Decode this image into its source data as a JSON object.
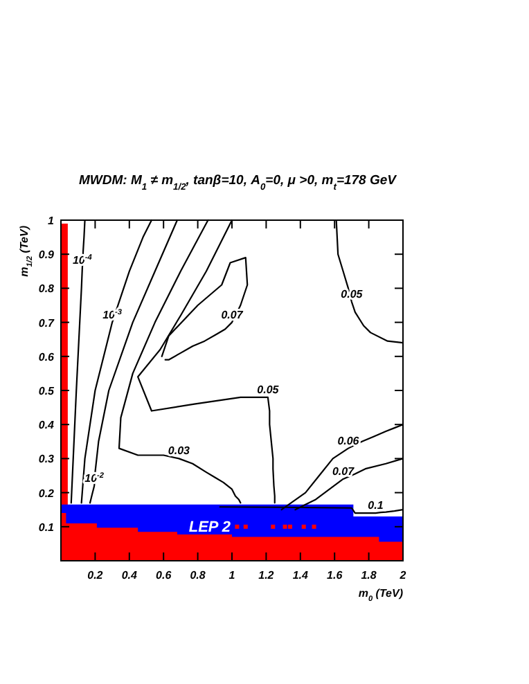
{
  "chart_data": {
    "type": "line",
    "title": "MWDM: M$_{1}$ ≠ m$_{1/2}$, tanβ=10, A$_{0}$=0, μ >0, m$_{t}$=178 GeV",
    "xlabel": "m$_{0}$ (TeV)",
    "ylabel": "m$_{1/2}$ (TeV)",
    "xlim": [
      0,
      2
    ],
    "xticks": [
      0.2,
      0.4,
      0.6,
      0.8,
      1,
      1.2,
      1.4,
      1.6,
      1.8,
      2
    ],
    "ylim": [
      0,
      1
    ],
    "yticks": [
      0.1,
      0.2,
      0.3,
      0.4,
      0.5,
      0.6,
      0.7,
      0.8,
      0.9,
      1
    ],
    "legend": false,
    "series": [
      {
        "type": "area",
        "color": "#ff0000",
        "x": [
          0,
          0.04
        ],
        "values": [
          0.99,
          0.99
        ]
      },
      {
        "type": "area",
        "name": "LEP 2",
        "color": "#0000ff",
        "x": [
          0,
          0.4,
          0.87,
          1.71,
          1.71,
          2
        ],
        "values": [
          0.165,
          0.165,
          0.165,
          0.165,
          0.13,
          0.13
        ]
      },
      {
        "type": "area",
        "color": "#ff0000",
        "x": [
          0,
          0.03,
          0.03,
          0.21,
          0.21,
          0.45,
          0.45,
          0.68,
          0.68,
          1.0,
          1.0,
          1.86,
          1.86,
          2
        ],
        "values": [
          0.14,
          0.14,
          0.11,
          0.11,
          0.097,
          0.097,
          0.085,
          0.085,
          0.077,
          0.077,
          0.07,
          0.07,
          0.056,
          0.056
        ]
      },
      {
        "name": "10$^{-4}$",
        "color": "#000000",
        "x": [
          0.06,
          0.09,
          0.12,
          0.125,
          0.13,
          0.135,
          0.14
        ],
        "values": [
          0.17,
          0.5,
          0.8,
          0.86,
          0.91,
          0.95,
          1.0
        ]
      },
      {
        "name": "10$^{-3}$",
        "color": "#000000",
        "x": [
          0.12,
          0.14,
          0.2,
          0.3,
          0.4,
          0.48,
          0.53
        ],
        "values": [
          0.17,
          0.3,
          0.5,
          0.7,
          0.85,
          0.95,
          1.0
        ]
      },
      {
        "name": "10$^{-2}$",
        "color": "#000000",
        "x": [
          0.17,
          0.175,
          0.18,
          0.185,
          0.19,
          0.195,
          0.2,
          0.22,
          0.28,
          0.42,
          0.55,
          0.68
        ],
        "values": [
          0.17,
          0.18,
          0.19,
          0.2,
          0.21,
          0.22,
          0.26,
          0.35,
          0.5,
          0.7,
          0.85,
          1.0
        ]
      },
      {
        "name": "0.03",
        "color": "#000000",
        "x": [
          0.86,
          0.7,
          0.55,
          0.42,
          0.35,
          0.34,
          0.45,
          0.6,
          0.69,
          0.77,
          0.85,
          0.9,
          0.95,
          1.0,
          1.02,
          1.04,
          1.05
        ],
        "values": [
          1.0,
          0.85,
          0.7,
          0.55,
          0.42,
          0.33,
          0.31,
          0.31,
          0.3,
          0.285,
          0.26,
          0.245,
          0.23,
          0.21,
          0.19,
          0.18,
          0.17
        ]
      },
      {
        "name": "0.05",
        "color": "#000000",
        "x": [
          1.0,
          0.85,
          0.7,
          0.58,
          0.45,
          0.53,
          0.78,
          1.05,
          1.21,
          1.22,
          1.22,
          1.23,
          1.24,
          1.24,
          1.245,
          1.25,
          1.25
        ],
        "values": [
          1.0,
          0.85,
          0.72,
          0.62,
          0.54,
          0.44,
          0.46,
          0.48,
          0.48,
          0.44,
          0.4,
          0.35,
          0.3,
          0.27,
          0.22,
          0.19,
          0.17
        ]
      },
      {
        "name": "0.07",
        "color": "#000000",
        "x": [
          0.61,
          0.63,
          0.7,
          0.77,
          0.84,
          0.91,
          0.96,
          1.0,
          1.05,
          1.09,
          1.08,
          0.99,
          0.94,
          0.8,
          0.63,
          0.59
        ],
        "values": [
          0.59,
          0.59,
          0.61,
          0.63,
          0.645,
          0.665,
          0.68,
          0.7,
          0.75,
          0.81,
          0.89,
          0.875,
          0.81,
          0.75,
          0.66,
          0.6
        ]
      },
      {
        "name": "0.05",
        "color": "#000000",
        "x": [
          1.61,
          1.615,
          1.62,
          1.65,
          1.68,
          1.7,
          1.72,
          1.77,
          1.81,
          1.91,
          2.0
        ],
        "values": [
          1.0,
          0.95,
          0.9,
          0.85,
          0.8,
          0.76,
          0.73,
          0.69,
          0.67,
          0.645,
          0.64
        ]
      },
      {
        "name": "0.06",
        "color": "#000000",
        "x": [
          1.29,
          1.36,
          1.43,
          1.51,
          1.59,
          1.68,
          1.76,
          1.83,
          1.9,
          1.95,
          2.0
        ],
        "values": [
          0.15,
          0.175,
          0.2,
          0.25,
          0.3,
          0.33,
          0.35,
          0.365,
          0.38,
          0.39,
          0.4
        ]
      },
      {
        "name": "0.07",
        "color": "#000000",
        "x": [
          1.37,
          1.43,
          1.49,
          1.57,
          1.65,
          1.72,
          1.78,
          1.9,
          2.0
        ],
        "values": [
          0.15,
          0.165,
          0.18,
          0.21,
          0.24,
          0.255,
          0.27,
          0.285,
          0.3
        ]
      },
      {
        "name": "0.1",
        "color": "#000000",
        "x": [
          0.93,
          1.3,
          1.7,
          1.72,
          1.84,
          1.87,
          1.9,
          1.95,
          2.0
        ],
        "values": [
          0.158,
          0.157,
          0.155,
          0.14,
          0.14,
          0.142,
          0.143,
          0.146,
          0.15
        ]
      },
      {
        "type": "scatter",
        "color": "#ff0000",
        "marker": "square",
        "x": [
          1.03,
          1.08,
          1.24,
          1.31,
          1.34,
          1.42,
          1.48
        ],
        "values": [
          0.1,
          0.1,
          0.1,
          0.1,
          0.1,
          0.1,
          0.1
        ]
      }
    ]
  }
}
